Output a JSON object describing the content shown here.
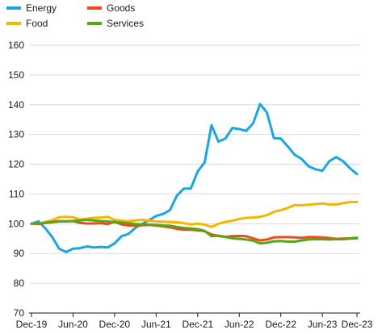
{
  "chart_data": {
    "type": "line",
    "title": "",
    "xlabel": "",
    "ylabel": "",
    "ylim": [
      70,
      160
    ],
    "yticks": [
      70,
      80,
      90,
      100,
      110,
      120,
      130,
      140,
      150,
      160
    ],
    "grid": true,
    "legend_position": "top",
    "x_tick_labels": [
      "Dec-19",
      "Jun-20",
      "Dec-20",
      "Jun-21",
      "Dec-21",
      "Jun-22",
      "Dec-22",
      "Jun-23",
      "Dec-23"
    ],
    "x_start": "Dec-19",
    "x_end": "Dec-23",
    "series": [
      {
        "name": "Energy",
        "color": "#1aa6e0",
        "values": [
          100,
          100.8,
          98.5,
          95.5,
          91.6,
          90.5,
          91.6,
          91.8,
          92.4,
          92.0,
          92.2,
          92.0,
          93.4,
          95.8,
          96.6,
          98.6,
          100.0,
          101.2,
          102.6,
          103.3,
          104.6,
          109.5,
          111.8,
          111.8,
          117.6,
          120.6,
          133.1,
          127.6,
          128.6,
          132.2,
          131.8,
          131.2,
          133.7,
          140.2,
          137.4,
          128.8,
          128.6,
          126.0,
          123.2,
          121.8,
          119.3,
          118.3,
          117.8,
          121.0,
          122.4,
          121.0,
          118.6,
          116.7
        ]
      },
      {
        "name": "Food",
        "color": "#f7b500",
        "values": [
          100,
          99.9,
          100.6,
          101.2,
          102.2,
          102.3,
          102.2,
          101.4,
          101.7,
          102.0,
          102.1,
          102.3,
          101.3,
          101.0,
          100.8,
          101.1,
          101.3,
          101.0,
          100.8,
          100.7,
          100.6,
          100.5,
          100.2,
          99.8,
          100.0,
          99.7,
          98.9,
          100.0,
          100.6,
          101.0,
          101.6,
          102.0,
          102.1,
          102.3,
          102.9,
          104.0,
          104.6,
          105.3,
          106.3,
          106.2,
          106.4,
          106.6,
          106.8,
          106.5,
          106.5,
          106.9,
          107.3,
          107.3
        ]
      },
      {
        "name": "Goods",
        "color": "#ef4a1a",
        "values": [
          100,
          99.9,
          100.3,
          100.5,
          100.8,
          100.8,
          100.9,
          100.3,
          100.1,
          100.1,
          100.2,
          99.9,
          100.7,
          99.8,
          99.4,
          99.4,
          99.5,
          99.6,
          99.4,
          99.1,
          98.8,
          98.3,
          98.0,
          98.0,
          97.8,
          97.5,
          96.4,
          95.9,
          95.6,
          95.8,
          95.9,
          95.8,
          95.1,
          94.4,
          94.7,
          95.4,
          95.5,
          95.5,
          95.4,
          95.3,
          95.5,
          95.5,
          95.4,
          95.2,
          94.9,
          95.0,
          95.1,
          95.3
        ]
      },
      {
        "name": "Services",
        "color": "#59a516",
        "values": [
          100,
          100.1,
          100.3,
          100.6,
          100.9,
          100.8,
          100.9,
          101.1,
          101.3,
          101.1,
          100.9,
          100.8,
          100.5,
          100.4,
          100.2,
          99.9,
          99.8,
          99.7,
          99.6,
          99.4,
          99.3,
          98.9,
          98.6,
          98.4,
          98.2,
          97.6,
          95.8,
          96.0,
          95.6,
          95.1,
          94.9,
          94.7,
          94.3,
          93.4,
          93.6,
          94.1,
          94.2,
          94.0,
          94.0,
          94.4,
          94.7,
          94.8,
          94.8,
          94.7,
          94.8,
          94.8,
          95.0,
          95.1
        ]
      }
    ]
  }
}
